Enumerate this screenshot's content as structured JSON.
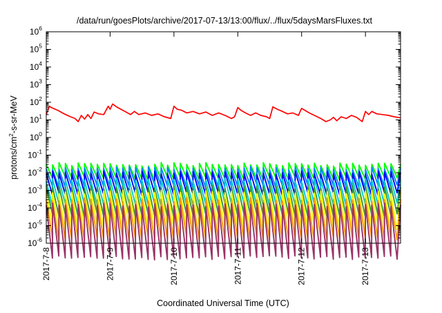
{
  "chart_data": {
    "type": "line",
    "title": "/data/run/goesPlots/archive/2017-07-13/13:00/flux/../flux/5daysMarsFluxes.txt",
    "xlabel": "Coordinated Universal Time (UTC)",
    "ylabel_parts": {
      "pre": "protons/cm",
      "sup": "2",
      "post": "-s-sr-MeV"
    },
    "y_scale": "log",
    "ylim": [
      1e-06,
      1000000.0
    ],
    "y_tick_exponents": [
      -6,
      -5,
      -4,
      -3,
      -2,
      -1,
      0,
      1,
      2,
      3,
      4,
      5,
      6
    ],
    "x_unit": "days since 2017-7-8 00:00 UTC",
    "xlim": [
      0,
      5.55
    ],
    "x_ticks": [
      {
        "x": 0,
        "label": "2017-7-8"
      },
      {
        "x": 1,
        "label": "2017-7-9"
      },
      {
        "x": 2,
        "label": "2017-7-10"
      },
      {
        "x": 3,
        "label": "2017-7-11"
      },
      {
        "x": 4,
        "label": "2017-7-12"
      },
      {
        "x": 5,
        "label": "2017-7-13"
      }
    ],
    "grid": false,
    "legend": "none",
    "series": [
      {
        "color": "#ff0000",
        "x": [
          0,
          0.05,
          0.08,
          0.18,
          0.28,
          0.38,
          0.45,
          0.5,
          0.55,
          0.6,
          0.65,
          0.7,
          0.75,
          0.82,
          0.9,
          0.97,
          1.0,
          1.04,
          1.1,
          1.18,
          1.25,
          1.32,
          1.38,
          1.45,
          1.55,
          1.65,
          1.75,
          1.85,
          1.95,
          2.0,
          2.05,
          2.12,
          2.2,
          2.3,
          2.4,
          2.5,
          2.6,
          2.7,
          2.8,
          2.9,
          2.95,
          3.0,
          3.05,
          3.12,
          3.2,
          3.28,
          3.36,
          3.45,
          3.5,
          3.55,
          3.62,
          3.7,
          3.78,
          3.86,
          3.95,
          4.0,
          4.05,
          4.12,
          4.2,
          4.3,
          4.38,
          4.45,
          4.5,
          4.55,
          4.62,
          4.7,
          4.78,
          4.86,
          4.95,
          5.0,
          5.05,
          5.1,
          5.18,
          5.27,
          5.36,
          5.45,
          5.55
        ],
        "y": [
          20,
          60,
          50,
          35,
          22,
          15,
          12,
          8,
          18,
          11,
          20,
          12,
          28,
          22,
          20,
          60,
          40,
          80,
          55,
          38,
          28,
          20,
          30,
          20,
          25,
          18,
          22,
          15,
          12,
          60,
          40,
          35,
          25,
          30,
          22,
          28,
          18,
          25,
          18,
          12,
          15,
          50,
          35,
          25,
          18,
          25,
          18,
          15,
          12,
          55,
          40,
          30,
          22,
          25,
          18,
          45,
          35,
          25,
          18,
          12,
          8,
          10,
          14,
          9,
          15,
          12,
          18,
          14,
          8,
          30,
          20,
          30,
          22,
          20,
          18,
          15,
          13
        ]
      },
      {
        "color": "#00ff00",
        "base": 0.03,
        "drop": 0.8,
        "noise": 0.1,
        "seed": 1
      },
      {
        "color": "#0088ff",
        "base": 0.018,
        "drop": 1.0,
        "noise": 0.1,
        "seed": 2
      },
      {
        "color": "#0000ff",
        "base": 0.01,
        "drop": 1.2,
        "noise": 0.1,
        "seed": 3
      },
      {
        "color": "#00cccc",
        "base": 0.004,
        "drop": 1.4,
        "noise": 0.1,
        "seed": 4
      },
      {
        "color": "#339933",
        "base": 0.0015,
        "drop": 1.6,
        "noise": 0.1,
        "seed": 5
      },
      {
        "color": "#ffff00",
        "base": 0.0008,
        "drop": 2.0,
        "noise": 0.12,
        "seed": 6
      },
      {
        "color": "#ff9900",
        "base": 0.0003,
        "drop": 2.2,
        "noise": 0.12,
        "seed": 7
      },
      {
        "color": "#993366",
        "base": 0.00015,
        "drop": 3.0,
        "noise": 0.12,
        "seed": 8
      }
    ],
    "teeth_per_day": 10,
    "teeth_total": 55
  }
}
